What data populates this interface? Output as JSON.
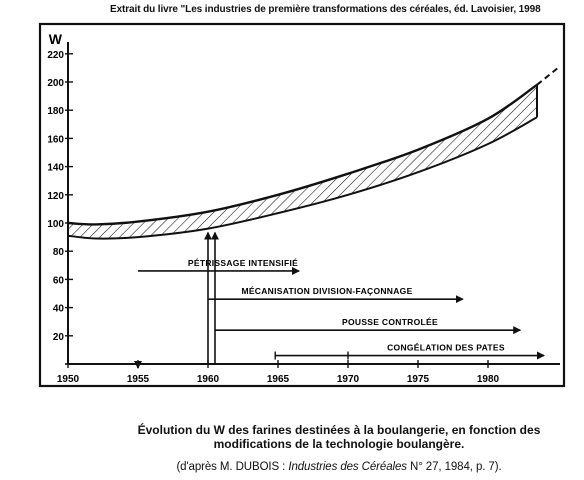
{
  "source_note": "Extrait du livre \"Les industries  de première transformations des céréales, éd. Lavoisier, 1998",
  "caption": {
    "line1": "Évolution du W des farines destinées à la boulangerie, en fonction des",
    "line2": "modifications de la technologie boulangère.",
    "credit_prefix": "(d'après M. DUBOIS : ",
    "credit_italic": "Industries des Céréales",
    "credit_suffix": " N° 27, 1984, p. 7)."
  },
  "chart_data": {
    "type": "area",
    "ylabel": "W",
    "xlabel": "",
    "xlim": [
      1950,
      1985
    ],
    "ylim": [
      0,
      230
    ],
    "x_ticks": [
      1950,
      1955,
      1960,
      1965,
      1970,
      1975,
      1980
    ],
    "y_ticks": [
      20,
      40,
      60,
      80,
      100,
      120,
      140,
      160,
      180,
      200,
      220
    ],
    "band": {
      "x": [
        1950,
        1952,
        1955,
        1960,
        1965,
        1970,
        1975,
        1980,
        1983.5
      ],
      "upper": [
        100,
        99,
        101,
        108,
        120,
        135,
        152,
        174,
        198
      ],
      "lower": [
        91,
        89,
        90,
        96,
        107,
        120,
        136,
        156,
        175
      ]
    },
    "dashed_extension": {
      "x": [
        1983.5,
        1985
      ],
      "y": [
        198,
        210
      ]
    },
    "events": [
      {
        "label": "PÉTRISSAGE INTENSIFIÉ",
        "start": 1955,
        "arrow_start": 1955,
        "arrow_end": 1966.5,
        "label_pos": 1962.5,
        "y": 66,
        "vertical_to": 0
      },
      {
        "label": "MÉCANISATION DIVISION-FAÇONNAGE",
        "start": 1960,
        "arrow_start": 1960,
        "arrow_end": 1978.2,
        "label_pos": 1968.5,
        "y": 46,
        "vertical_to": 96
      },
      {
        "label": "POUSSE CONTROLÉE",
        "start": 1960.5,
        "arrow_start": 1960.5,
        "arrow_end": 1982.3,
        "label_pos": 1973,
        "y": 24,
        "vertical_to": 96
      },
      {
        "label": "CONGÉLATION DES PATES",
        "start": 1965,
        "arrow_start": 1964.8,
        "arrow_end": 1984,
        "label_pos": 1977,
        "y": 6,
        "vertical_to": null
      }
    ],
    "grid": false,
    "legend": "none"
  }
}
